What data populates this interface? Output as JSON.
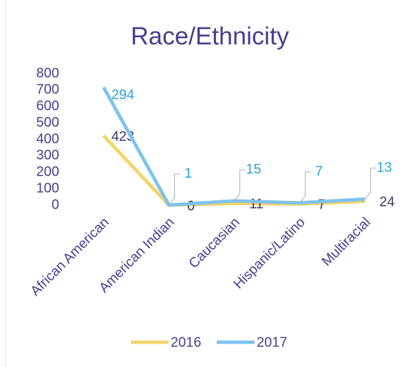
{
  "chart_data": {
    "type": "line",
    "stacked": true,
    "title": "Race/Ethnicity",
    "categories": [
      "African American",
      "American Indian",
      "Caucasian",
      "Hispanic/Latino",
      "Multiracial"
    ],
    "series": [
      {
        "name": "2016",
        "color": "#f4d46a",
        "label_color": "#3d3560",
        "values": [
          423,
          0,
          11,
          7,
          24
        ]
      },
      {
        "name": "2017",
        "color": "#7fc3ec",
        "label_color": "#2aa3de",
        "values": [
          294,
          1,
          15,
          7,
          13
        ]
      }
    ],
    "ylim": [
      0,
      800
    ],
    "yticks": [
      0,
      100,
      200,
      300,
      400,
      500,
      600,
      700,
      800
    ],
    "grid": false,
    "legend": "bottom"
  }
}
